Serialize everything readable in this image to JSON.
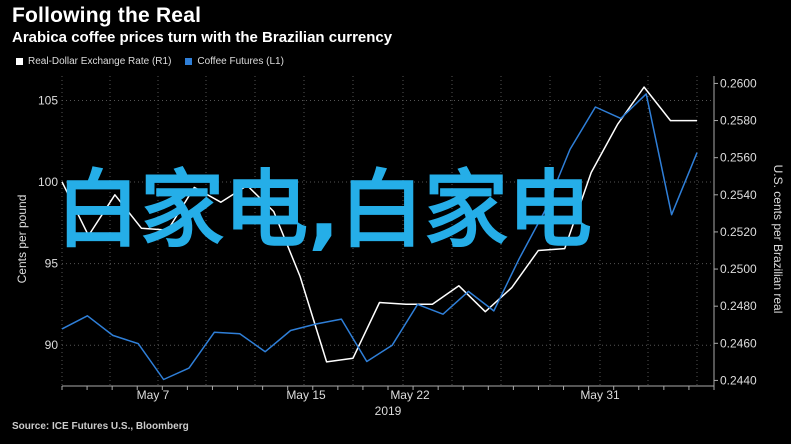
{
  "title": "Following the Real",
  "subtitle": "Arabica coffee prices turn with the Brazilian currency",
  "legend": [
    {
      "label": "Real-Dollar Exchange Rate (R1)",
      "color": "#ffffff"
    },
    {
      "label": "Coffee Futures (L1)",
      "color": "#2f7fd8"
    }
  ],
  "source": "Source: ICE Futures U.S., Bloomberg",
  "overlay_text": "白家电,白家电",
  "chart_data": {
    "type": "line",
    "x_tick_labels": [
      "May 7",
      "May 15",
      "May 22",
      "May 31"
    ],
    "x_year_label": "2019",
    "left_axis": {
      "label": "Cents per pound",
      "ticks": [
        "90",
        "95",
        "100",
        "105"
      ],
      "range": [
        87.5,
        106.5
      ]
    },
    "right_axis": {
      "label": "U.S. cents per Brazilian real",
      "ticks": [
        "0.2440",
        "0.2460",
        "0.2480",
        "0.2500",
        "0.2520",
        "0.2540",
        "0.2560",
        "0.2580",
        "0.2600"
      ],
      "range": [
        0.2437,
        0.2604
      ]
    },
    "series": [
      {
        "name": "Real-Dollar Exchange Rate (R1)",
        "axis": "right",
        "color": "#ffffff",
        "values": [
          0.2547,
          0.2518,
          0.254,
          0.2522,
          0.2521,
          0.2544,
          0.2536,
          0.2545,
          0.2531,
          0.2496,
          0.245,
          0.2452,
          0.2482,
          0.2481,
          0.2481,
          0.2491,
          0.2477,
          0.249,
          0.251,
          0.2511,
          0.2552,
          0.2578,
          0.2598,
          0.258,
          0.258
        ]
      },
      {
        "name": "Coffee Futures (L1)",
        "axis": "left",
        "color": "#2f7fd8",
        "values": [
          91.0,
          91.8,
          90.6,
          90.1,
          87.9,
          88.6,
          90.8,
          90.7,
          89.6,
          90.9,
          91.3,
          91.6,
          89.0,
          90.0,
          92.5,
          91.9,
          93.3,
          92.1,
          95.3,
          98.2,
          102.0,
          104.6,
          103.9,
          105.4,
          98.0,
          101.8
        ]
      }
    ],
    "grid": true,
    "legend_position": "top-left"
  }
}
